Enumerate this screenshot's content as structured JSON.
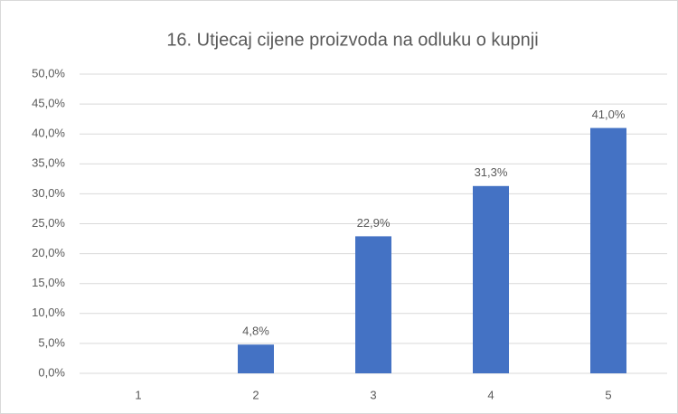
{
  "chart_data": {
    "type": "bar",
    "title": "16. Utjecaj cijene proizvoda na odluku o kupnji",
    "categories": [
      "1",
      "2",
      "3",
      "4",
      "5"
    ],
    "values": [
      0,
      4.8,
      22.9,
      31.3,
      41.0
    ],
    "value_labels": [
      null,
      "4,8%",
      "22,9%",
      "31,3%",
      "41,0%"
    ],
    "color": "#4472c4",
    "ylim": [
      0,
      50
    ],
    "yticks": [
      {
        "value": 0,
        "label": "0,0%"
      },
      {
        "value": 5,
        "label": "5,0%"
      },
      {
        "value": 10,
        "label": "10,0%"
      },
      {
        "value": 15,
        "label": "15,0%"
      },
      {
        "value": 20,
        "label": "20,0%"
      },
      {
        "value": 25,
        "label": "25,0%"
      },
      {
        "value": 30,
        "label": "30,0%"
      },
      {
        "value": 35,
        "label": "35,0%"
      },
      {
        "value": 40,
        "label": "40,0%"
      },
      {
        "value": 45,
        "label": "45,0%"
      },
      {
        "value": 50,
        "label": "50,0%"
      }
    ],
    "grid": true
  }
}
